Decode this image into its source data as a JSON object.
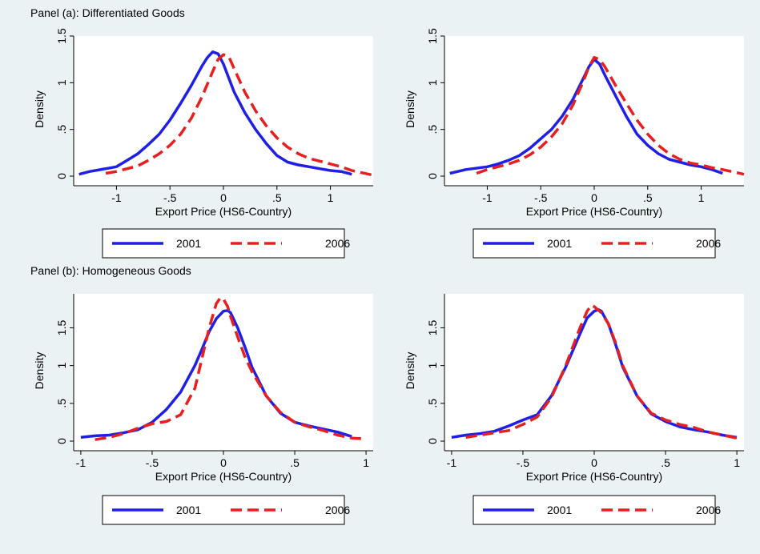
{
  "panels": [
    {
      "title": "Panel (a): Differentiated Goods"
    },
    {
      "title": "Panel (b): Homogeneous Goods"
    }
  ],
  "colors": {
    "s2001": "#1f1fe6",
    "s2006": "#e61f1f",
    "background": "#eaf2f3",
    "plot_bg": "#ffffff"
  },
  "chart_data": [
    {
      "type": "line",
      "xlabel": "Export Price (HS6-Country)",
      "ylabel": "Density",
      "xticks": [
        -1,
        -0.5,
        0,
        0.5,
        1
      ],
      "xtick_labels": [
        "-1",
        "-.5",
        "0",
        ".5",
        "1"
      ],
      "yticks": [
        0,
        0.5,
        1,
        1.5
      ],
      "ytick_labels": [
        "0",
        ".5",
        "1",
        "1.5"
      ],
      "xlim": [
        -1.4,
        1.4
      ],
      "ylim": [
        0,
        1.5
      ],
      "legend": "bottom",
      "series": [
        {
          "name": "2001",
          "style": "solid",
          "x": [
            -1.35,
            -1.25,
            -1.1,
            -1.0,
            -0.9,
            -0.8,
            -0.7,
            -0.6,
            -0.5,
            -0.4,
            -0.3,
            -0.2,
            -0.15,
            -0.1,
            -0.05,
            0.0,
            0.05,
            0.1,
            0.2,
            0.3,
            0.4,
            0.5,
            0.6,
            0.7,
            0.8,
            0.9,
            1.0,
            1.1,
            1.2
          ],
          "y": [
            0.02,
            0.05,
            0.08,
            0.1,
            0.17,
            0.24,
            0.34,
            0.45,
            0.6,
            0.78,
            0.97,
            1.18,
            1.27,
            1.33,
            1.31,
            1.2,
            1.05,
            0.9,
            0.68,
            0.5,
            0.35,
            0.22,
            0.15,
            0.12,
            0.1,
            0.08,
            0.06,
            0.05,
            0.02
          ]
        },
        {
          "name": "2006",
          "style": "dash",
          "x": [
            -1.1,
            -1.0,
            -0.9,
            -0.8,
            -0.7,
            -0.6,
            -0.5,
            -0.4,
            -0.3,
            -0.2,
            -0.1,
            -0.05,
            0.0,
            0.05,
            0.1,
            0.2,
            0.3,
            0.4,
            0.5,
            0.6,
            0.7,
            0.8,
            0.9,
            1.0,
            1.1,
            1.2,
            1.4
          ],
          "y": [
            0.03,
            0.05,
            0.08,
            0.11,
            0.17,
            0.24,
            0.33,
            0.45,
            0.62,
            0.85,
            1.12,
            1.25,
            1.3,
            1.28,
            1.15,
            0.9,
            0.7,
            0.54,
            0.41,
            0.31,
            0.24,
            0.19,
            0.16,
            0.13,
            0.1,
            0.06,
            0.01
          ]
        }
      ]
    },
    {
      "type": "line",
      "xlabel": "Export Price (HS6-Country)",
      "ylabel": "Density",
      "xticks": [
        -1,
        -0.5,
        0,
        0.5,
        1
      ],
      "xtick_labels": [
        "-1",
        "-.5",
        "0",
        ".5",
        "1"
      ],
      "yticks": [
        0,
        0.5,
        1,
        1.5
      ],
      "ytick_labels": [
        "0",
        ".5",
        "1",
        "1.5"
      ],
      "xlim": [
        -1.4,
        1.4
      ],
      "ylim": [
        0,
        1.5
      ],
      "legend": "bottom",
      "series": [
        {
          "name": "2001",
          "style": "solid",
          "x": [
            -1.35,
            -1.2,
            -1.0,
            -0.9,
            -0.8,
            -0.7,
            -0.6,
            -0.5,
            -0.4,
            -0.3,
            -0.2,
            -0.1,
            -0.05,
            0.0,
            0.05,
            0.1,
            0.2,
            0.3,
            0.4,
            0.5,
            0.6,
            0.7,
            0.8,
            0.9,
            1.0,
            1.1,
            1.2
          ],
          "y": [
            0.03,
            0.07,
            0.1,
            0.13,
            0.17,
            0.22,
            0.3,
            0.4,
            0.5,
            0.64,
            0.82,
            1.05,
            1.17,
            1.25,
            1.2,
            1.08,
            0.86,
            0.64,
            0.45,
            0.33,
            0.24,
            0.18,
            0.15,
            0.12,
            0.1,
            0.07,
            0.03
          ]
        },
        {
          "name": "2006",
          "style": "dash",
          "x": [
            -1.1,
            -1.0,
            -0.9,
            -0.8,
            -0.7,
            -0.6,
            -0.5,
            -0.4,
            -0.3,
            -0.2,
            -0.1,
            -0.05,
            0.0,
            0.05,
            0.1,
            0.2,
            0.3,
            0.4,
            0.5,
            0.6,
            0.7,
            0.8,
            0.9,
            1.0,
            1.1,
            1.2,
            1.4
          ],
          "y": [
            0.03,
            0.07,
            0.1,
            0.13,
            0.17,
            0.23,
            0.31,
            0.42,
            0.56,
            0.76,
            1.02,
            1.17,
            1.27,
            1.25,
            1.17,
            0.97,
            0.78,
            0.6,
            0.45,
            0.33,
            0.24,
            0.18,
            0.14,
            0.12,
            0.09,
            0.07,
            0.02
          ]
        }
      ]
    },
    {
      "type": "line",
      "xlabel": "Export Price (HS6-Country)",
      "ylabel": "Density",
      "xticks": [
        -1,
        -0.5,
        0,
        0.5,
        1
      ],
      "xtick_labels": [
        "-1",
        "-.5",
        "0",
        ".5",
        "1"
      ],
      "yticks": [
        0,
        0.5,
        1,
        1.5
      ],
      "ytick_labels": [
        "0",
        ".5",
        "1",
        "1.5"
      ],
      "xlim": [
        -1.05,
        1.05
      ],
      "ylim": [
        0,
        1.95
      ],
      "legend": "bottom",
      "series": [
        {
          "name": "2001",
          "style": "solid",
          "x": [
            -1.0,
            -0.9,
            -0.8,
            -0.7,
            -0.6,
            -0.5,
            -0.4,
            -0.3,
            -0.2,
            -0.15,
            -0.1,
            -0.05,
            0.0,
            0.03,
            0.05,
            0.1,
            0.15,
            0.2,
            0.3,
            0.4,
            0.5,
            0.6,
            0.7,
            0.8,
            0.9
          ],
          "y": [
            0.05,
            0.07,
            0.08,
            0.11,
            0.15,
            0.25,
            0.42,
            0.65,
            1.0,
            1.22,
            1.45,
            1.62,
            1.72,
            1.73,
            1.7,
            1.5,
            1.25,
            0.98,
            0.6,
            0.37,
            0.25,
            0.2,
            0.16,
            0.12,
            0.06
          ]
        },
        {
          "name": "2006",
          "style": "dash",
          "x": [
            -0.9,
            -0.8,
            -0.7,
            -0.6,
            -0.5,
            -0.4,
            -0.3,
            -0.2,
            -0.15,
            -0.1,
            -0.05,
            -0.02,
            0.0,
            0.03,
            0.05,
            0.1,
            0.15,
            0.2,
            0.3,
            0.4,
            0.5,
            0.6,
            0.7,
            0.8,
            0.9,
            1.0
          ],
          "y": [
            0.02,
            0.05,
            0.1,
            0.17,
            0.23,
            0.26,
            0.35,
            0.7,
            1.1,
            1.5,
            1.82,
            1.9,
            1.88,
            1.78,
            1.65,
            1.38,
            1.12,
            0.92,
            0.6,
            0.38,
            0.25,
            0.19,
            0.14,
            0.08,
            0.04,
            0.03
          ]
        }
      ]
    },
    {
      "type": "line",
      "xlabel": "Export Price (HS6-Country)",
      "ylabel": "Density",
      "xticks": [
        -1,
        -0.5,
        0,
        0.5,
        1
      ],
      "xtick_labels": [
        "-1",
        "-.5",
        "0",
        ".5",
        "1"
      ],
      "yticks": [
        0,
        0.5,
        1,
        1.5
      ],
      "ytick_labels": [
        "0",
        ".5",
        "1",
        "1.5"
      ],
      "xlim": [
        -1.05,
        1.05
      ],
      "ylim": [
        0,
        1.95
      ],
      "legend": "bottom",
      "series": [
        {
          "name": "2001",
          "style": "solid",
          "x": [
            -1.0,
            -0.9,
            -0.8,
            -0.7,
            -0.6,
            -0.5,
            -0.4,
            -0.3,
            -0.2,
            -0.1,
            -0.05,
            0.0,
            0.03,
            0.05,
            0.1,
            0.15,
            0.2,
            0.3,
            0.4,
            0.5,
            0.6,
            0.7,
            0.8,
            0.9,
            1.0
          ],
          "y": [
            0.05,
            0.08,
            0.1,
            0.13,
            0.2,
            0.28,
            0.35,
            0.6,
            0.98,
            1.42,
            1.63,
            1.72,
            1.74,
            1.72,
            1.55,
            1.28,
            0.98,
            0.6,
            0.36,
            0.26,
            0.19,
            0.15,
            0.12,
            0.08,
            0.05
          ]
        },
        {
          "name": "2006",
          "style": "dash",
          "x": [
            -0.9,
            -0.8,
            -0.7,
            -0.6,
            -0.5,
            -0.4,
            -0.3,
            -0.2,
            -0.1,
            -0.05,
            -0.02,
            0.0,
            0.05,
            0.1,
            0.15,
            0.2,
            0.3,
            0.4,
            0.5,
            0.6,
            0.7,
            0.8,
            0.9,
            1.0
          ],
          "y": [
            0.05,
            0.08,
            0.11,
            0.14,
            0.22,
            0.32,
            0.58,
            1.0,
            1.5,
            1.72,
            1.8,
            1.78,
            1.7,
            1.55,
            1.3,
            1.0,
            0.6,
            0.37,
            0.28,
            0.22,
            0.18,
            0.12,
            0.08,
            0.04
          ]
        }
      ]
    }
  ]
}
